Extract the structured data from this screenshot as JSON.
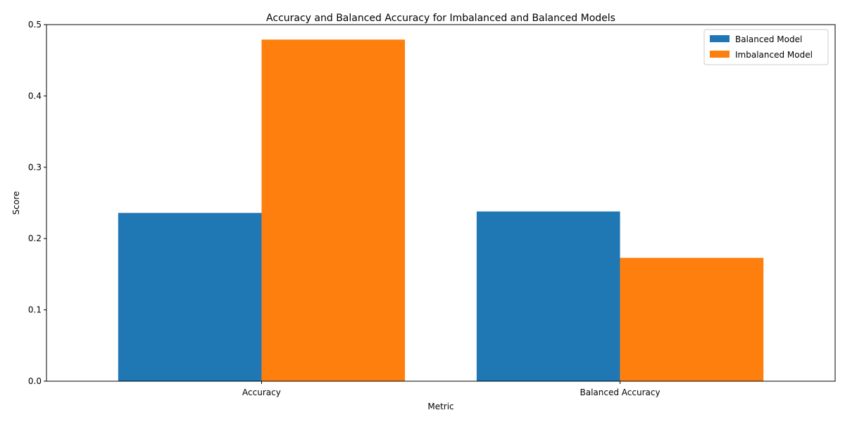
{
  "chart_data": {
    "type": "bar",
    "title": "Accuracy and Balanced Accuracy for Imbalanced and Balanced Models",
    "xlabel": "Metric",
    "ylabel": "Score",
    "categories": [
      "Accuracy",
      "Balanced Accuracy"
    ],
    "series": [
      {
        "name": "Balanced Model",
        "values": [
          0.236,
          0.238
        ],
        "color": "#1f77b4"
      },
      {
        "name": "Imbalanced Model",
        "values": [
          0.479,
          0.173
        ],
        "color": "#ff7f0e"
      }
    ],
    "ylim": [
      0,
      0.5
    ],
    "yticks": [
      "0.0",
      "0.1",
      "0.2",
      "0.3",
      "0.4",
      "0.5"
    ],
    "grid": false,
    "legend_position": "top-right"
  }
}
